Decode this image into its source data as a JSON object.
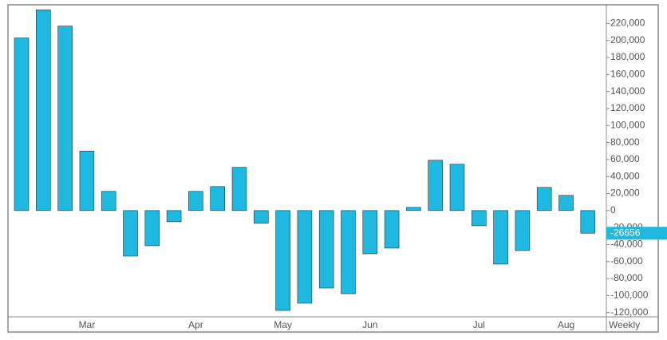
{
  "chart_data": {
    "type": "bar",
    "categories": [
      null,
      null,
      null,
      "Mar",
      null,
      null,
      null,
      null,
      "Apr",
      null,
      null,
      null,
      "May",
      null,
      null,
      null,
      "Jun",
      null,
      null,
      null,
      null,
      "Jul",
      null,
      null,
      null,
      "Aug",
      null
    ],
    "values": [
      203000,
      236000,
      217000,
      70000,
      22600,
      -53600,
      -41400,
      -13200,
      22600,
      28200,
      50800,
      -15000,
      -117500,
      -109000,
      -91200,
      -97800,
      -50800,
      -44200,
      3800,
      59200,
      54500,
      -17900,
      -63000,
      -47000,
      27300,
      17900,
      -26656
    ],
    "color": "#1fb8e0",
    "interval": "Weekly",
    "ylim": [
      -125000,
      242000
    ],
    "yticks": [
      {
        "value": -120000,
        "label": "-120,000"
      },
      {
        "value": -100000,
        "label": "-100,000"
      },
      {
        "value": -80000,
        "label": "-80,000"
      },
      {
        "value": -60000,
        "label": "-60,000"
      },
      {
        "value": -40000,
        "label": "-40,000"
      },
      {
        "value": -20000,
        "label": "-20,000"
      },
      0,
      {
        "value": 20000,
        "label": "20,000"
      },
      {
        "value": 40000,
        "label": "40,000"
      },
      {
        "value": 60000,
        "label": "60,000"
      },
      {
        "value": 80000,
        "label": "80,000"
      },
      {
        "value": 100000,
        "label": "100,000"
      },
      {
        "value": 120000,
        "label": "120,000"
      },
      {
        "value": 140000,
        "label": "140,000"
      },
      {
        "value": 160000,
        "label": "160,000"
      },
      {
        "value": 180000,
        "label": "180,000"
      },
      {
        "value": 200000,
        "label": "200,000"
      },
      {
        "value": 220000,
        "label": "220,000"
      }
    ]
  }
}
